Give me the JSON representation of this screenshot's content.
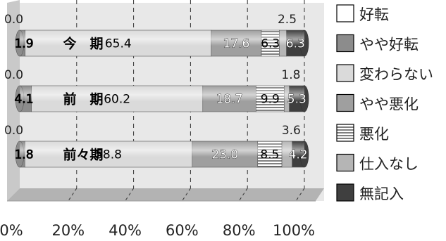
{
  "chart_data": {
    "type": "bar",
    "orientation": "horizontal",
    "stacked": true,
    "percent_scale": true,
    "categories": [
      "今　期",
      "前　期",
      "前々期"
    ],
    "series": [
      {
        "name": "好転",
        "values": [
          0.0,
          0.0,
          0.0
        ],
        "color": "#ffffff"
      },
      {
        "name": "やや好転",
        "values": [
          1.9,
          4.1,
          1.8
        ],
        "color": "#8c8c8c"
      },
      {
        "name": "変わらない",
        "values": [
          65.4,
          60.2,
          58.8
        ],
        "color": "#dadada"
      },
      {
        "name": "やや悪化",
        "values": [
          17.6,
          18.7,
          23.0
        ],
        "color": "#9f9f9f"
      },
      {
        "name": "悪化",
        "values": [
          6.3,
          9.9,
          8.5
        ],
        "color": "#ffffff",
        "pattern": "horizontal-lines"
      },
      {
        "name": "仕入なし",
        "values": [
          2.5,
          1.8,
          3.6
        ],
        "color": "#b5b5b5"
      },
      {
        "name": "無記入",
        "values": [
          6.3,
          5.3,
          4.2
        ],
        "color": "#3f3f3f"
      }
    ],
    "x_ticks": [
      "0%",
      "20%",
      "40%",
      "60%",
      "80%",
      "100%"
    ],
    "xlim": [
      0,
      100
    ],
    "grid": true,
    "legend_position": "right"
  }
}
